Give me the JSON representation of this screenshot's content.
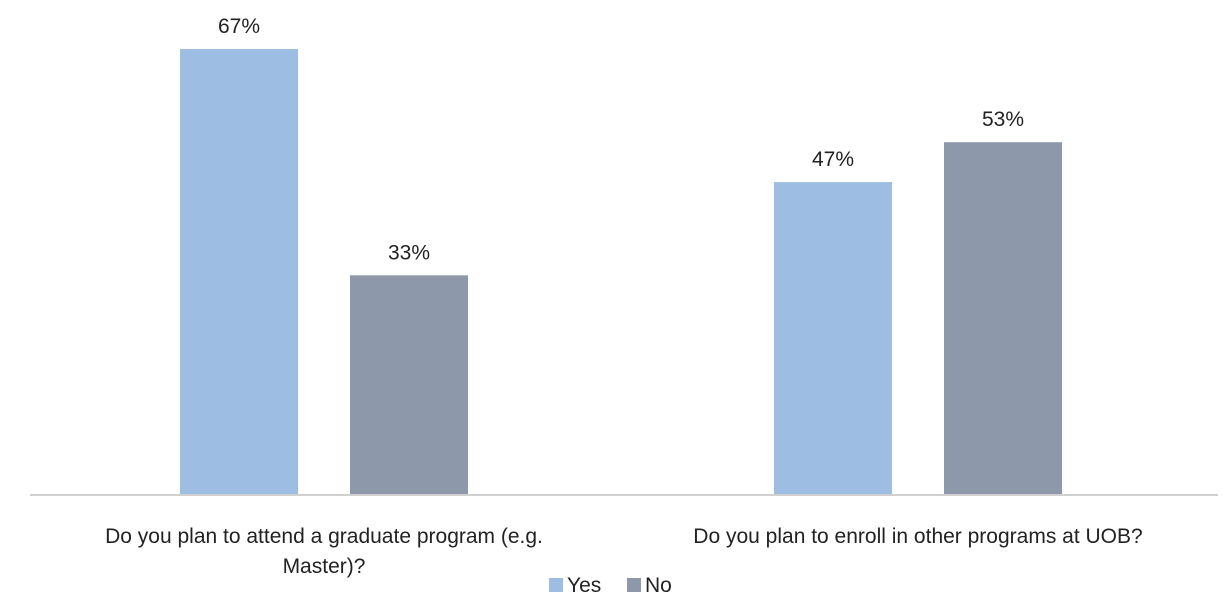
{
  "chart_data": {
    "type": "bar",
    "categories": [
      "Do you plan to attend a graduate program (e.g. Master)?",
      "Do you plan to enroll in other programs at UOB?"
    ],
    "category_lines": [
      [
        "Do you plan to attend a graduate program (e.g.",
        "Master)?"
      ],
      [
        "Do you plan to enroll in other programs at UOB?"
      ]
    ],
    "series": [
      {
        "name": "Yes",
        "values": [
          67,
          47
        ],
        "labels": [
          "67%",
          "47%"
        ],
        "color": "#9dbde2"
      },
      {
        "name": "No",
        "values": [
          33,
          53
        ],
        "labels": [
          "33%",
          "53%"
        ],
        "color": "#8d99ab"
      }
    ],
    "unit": "%",
    "ylim": [
      0,
      67
    ],
    "grid": false,
    "legend": "bottom",
    "axis_color": "#d0d0d0"
  }
}
